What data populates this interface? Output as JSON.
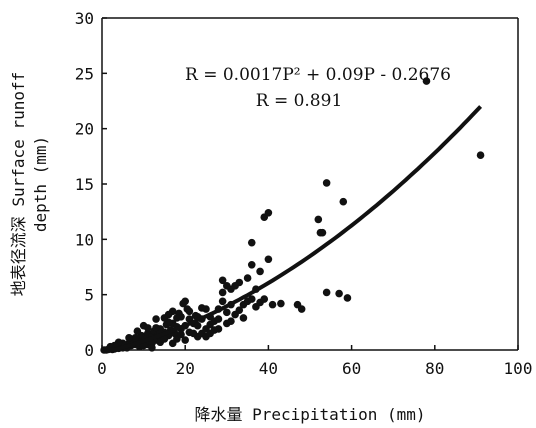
{
  "chart_data": {
    "type": "scatter",
    "xlabel": "降水量 Precipitation (mm)",
    "ylabel_line1": "地表径流深 Surface runoff",
    "ylabel_line2": "depth (mm)",
    "xlim": [
      0,
      100
    ],
    "ylim": [
      0,
      30
    ],
    "xticks": [
      "0",
      "20",
      "40",
      "60",
      "80",
      "100"
    ],
    "yticks": [
      "0",
      "5",
      "10",
      "15",
      "20",
      "25",
      "30"
    ],
    "grid": false,
    "legend": "none",
    "annotation_equation": "R = 0.0017P² + 0.09P - 0.2676",
    "annotation_r": "R = 0.891",
    "fit": {
      "a": 0.0017,
      "b": 0.09,
      "c": -0.2676,
      "x_range": [
        0,
        91
      ]
    },
    "series": [
      {
        "points": [
          [
            0.5,
            0
          ],
          [
            1,
            0
          ],
          [
            1.5,
            0.05
          ],
          [
            2,
            0.1
          ],
          [
            2.5,
            0.05
          ],
          [
            3,
            0.1
          ],
          [
            3.5,
            0.2
          ],
          [
            4,
            0.15
          ],
          [
            4.5,
            0.3
          ],
          [
            5,
            0.2
          ],
          [
            5.5,
            0.4
          ],
          [
            6,
            0.3
          ],
          [
            6.5,
            0.6
          ],
          [
            7,
            0.4
          ],
          [
            7.5,
            0.8
          ],
          [
            8,
            0.5
          ],
          [
            8.5,
            1
          ],
          [
            9,
            0.7
          ],
          [
            9.5,
            1.3
          ],
          [
            10,
            0.8
          ],
          [
            10,
            2.2
          ],
          [
            10.5,
            1.1
          ],
          [
            11,
            1.5
          ],
          [
            11.5,
            0.9
          ],
          [
            12,
            1.2
          ],
          [
            12.5,
            1.7
          ],
          [
            13,
            0.9
          ],
          [
            13.5,
            1.4
          ],
          [
            14,
            1.9
          ],
          [
            14.5,
            1.1
          ],
          [
            15,
            1.6
          ],
          [
            15.5,
            2.3
          ],
          [
            16,
            1.3
          ],
          [
            16.5,
            1.8
          ],
          [
            17,
            2.4
          ],
          [
            17,
            3.5
          ],
          [
            17.5,
            1.5
          ],
          [
            18,
            2.1
          ],
          [
            18.5,
            3.3
          ],
          [
            19,
            1.9
          ],
          [
            19.5,
            4.2
          ],
          [
            20,
            2.2
          ],
          [
            20.5,
            3.7
          ],
          [
            21,
            1.6
          ],
          [
            22,
            2.4
          ],
          [
            22.5,
            3.1
          ],
          [
            23,
            1.2
          ],
          [
            24,
            2.8
          ],
          [
            25,
            1.9
          ],
          [
            25,
            3.7
          ],
          [
            26,
            2.3
          ],
          [
            27,
            2.6
          ],
          [
            28,
            1.9
          ],
          [
            28,
            3.7
          ],
          [
            29,
            4.4
          ],
          [
            29,
            6.3
          ],
          [
            30,
            2.4
          ],
          [
            31,
            4.1
          ],
          [
            32,
            3.2
          ],
          [
            33,
            6.1
          ],
          [
            34,
            4.1
          ],
          [
            34,
            2.9
          ],
          [
            35,
            6.5
          ],
          [
            35,
            4.4
          ],
          [
            36,
            4.6
          ],
          [
            36,
            9.7
          ],
          [
            37,
            5.5
          ],
          [
            37,
            3.9
          ],
          [
            38,
            7.1
          ],
          [
            38,
            4.3
          ],
          [
            39,
            4.6
          ],
          [
            39,
            12
          ],
          [
            40,
            12.4
          ],
          [
            40,
            8.2
          ],
          [
            41,
            4.1
          ],
          [
            43,
            4.2
          ],
          [
            47,
            4.1
          ],
          [
            48,
            3.7
          ],
          [
            52,
            11.8
          ],
          [
            52.5,
            10.6
          ],
          [
            53,
            10.6
          ],
          [
            54,
            15.1
          ],
          [
            54,
            5.2
          ],
          [
            57,
            5.1
          ],
          [
            58,
            13.4
          ],
          [
            59,
            4.7
          ],
          [
            78,
            24.3
          ],
          [
            91,
            17.6
          ],
          [
            6,
            0.2
          ],
          [
            7,
            0.9
          ],
          [
            8,
            1.1
          ],
          [
            9,
            0.3
          ],
          [
            11,
            0.5
          ],
          [
            12,
            0.6
          ],
          [
            13,
            2
          ],
          [
            14,
            0.7
          ],
          [
            15,
            1
          ],
          [
            16,
            2.5
          ],
          [
            18,
            1
          ],
          [
            19,
            3
          ],
          [
            20,
            4.4
          ],
          [
            21,
            2.8
          ],
          [
            23,
            2.2
          ],
          [
            24,
            1.5
          ],
          [
            26,
            3
          ],
          [
            27,
            1.8
          ],
          [
            30,
            3.4
          ],
          [
            31,
            2.6
          ],
          [
            32,
            5.8
          ],
          [
            33,
            3.6
          ],
          [
            36,
            7.7
          ],
          [
            30,
            5.8
          ],
          [
            25,
            1.2
          ],
          [
            22,
            1.5
          ],
          [
            17,
            0.6
          ],
          [
            14,
            1.5
          ],
          [
            12,
            0.2
          ],
          [
            10,
            0.4
          ],
          [
            5,
            0.6
          ],
          [
            4,
            0.7
          ],
          [
            3,
            0.4
          ],
          [
            2,
            0.3
          ],
          [
            6.5,
            1.1
          ],
          [
            8.5,
            1.7
          ],
          [
            11,
            2
          ],
          [
            13,
            2.8
          ],
          [
            16,
            3.2
          ],
          [
            18,
            2.9
          ],
          [
            21,
            3.5
          ],
          [
            23,
            3
          ],
          [
            15,
            2.9
          ],
          [
            19,
            1.4
          ],
          [
            28,
            2.8
          ],
          [
            29,
            5.2
          ],
          [
            31,
            5.5
          ],
          [
            26,
            1.5
          ],
          [
            20,
            0.9
          ],
          [
            24,
            3.8
          ]
        ]
      }
    ]
  }
}
